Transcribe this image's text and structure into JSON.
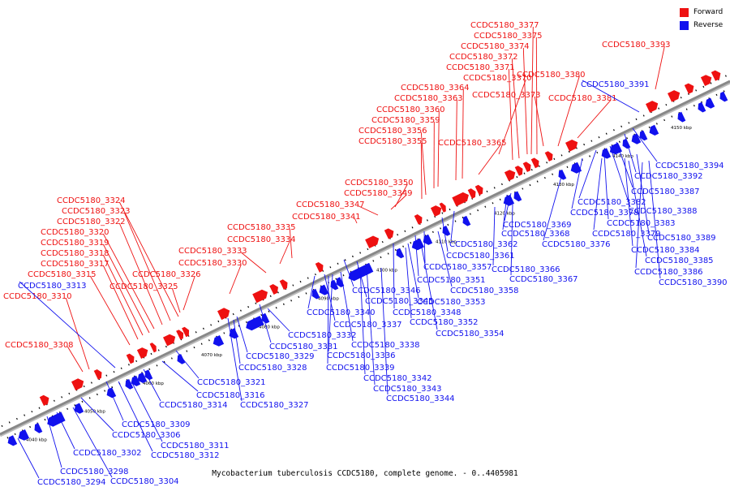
{
  "caption": "Mycobacterium tuberculosis CCDC5180, complete genome. - 0..4405981",
  "legend": [
    {
      "label": "Forward",
      "color": "#ee1111"
    },
    {
      "label": "Reverse",
      "color": "#1111ee"
    }
  ],
  "colors": {
    "forward": "#ee1111",
    "reverse": "#1111ee",
    "axis": "#888888",
    "ticks": "#000000"
  },
  "axis_ticks": [
    "4040 kbp",
    "4050 kbp",
    "4060 kbp",
    "4070 kbp",
    "4080 kbp",
    "4090 kbp",
    "4100 kbp",
    "4110 kbp",
    "4120 kbp",
    "4130 kbp",
    "4140 kbp",
    "4150 kbp"
  ],
  "forward_labels": [
    "CCDC5180_3377",
    "CCDC5180_3375",
    "CCDC5180_3374",
    "CCDC5180_3372",
    "CCDC5180_3371",
    "CCDC5180_3370",
    "CCDC5180_3364",
    "CCDC5180_3363",
    "CCDC5180_3360",
    "CCDC5180_3359",
    "CCDC5180_3356",
    "CCDC5180_3355",
    "CCDC5180_3365",
    "CCDC5180_3373",
    "CCDC5180_3380",
    "CCDC5180_3381",
    "CCDC5180_3393",
    "CCDC5180_3350",
    "CCDC5180_3349",
    "CCDC5180_3347",
    "CCDC5180_3341",
    "CCDC5180_3335",
    "CCDC5180_3334",
    "CCDC5180_3333",
    "CCDC5180_3330",
    "CCDC5180_3326",
    "CCDC5180_3325",
    "CCDC5180_3324",
    "CCDC5180_3323",
    "CCDC5180_3322",
    "CCDC5180_3320",
    "CCDC5180_3319",
    "CCDC5180_3318",
    "CCDC5180_3317",
    "CCDC5180_3315",
    "CCDC5180_3310",
    "CCDC5180_3308"
  ],
  "reverse_labels": [
    "CCDC5180_3391",
    "CCDC5180_3394",
    "CCDC5180_3392",
    "CCDC5180_3387",
    "CCDC5180_3388",
    "CCDC5180_3382",
    "CCDC5180_3378",
    "CCDC5180_3383",
    "CCDC5180_3379",
    "CCDC5180_3389",
    "CCDC5180_3384",
    "CCDC5180_3385",
    "CCDC5180_3386",
    "CCDC5180_3390",
    "CCDC5180_3369",
    "CCDC5180_3368",
    "CCDC5180_3376",
    "CCDC5180_3362",
    "CCDC5180_3361",
    "CCDC5180_3357",
    "CCDC5180_3366",
    "CCDC5180_3367",
    "CCDC5180_3351",
    "CCDC5180_3358",
    "CCDC5180_3346",
    "CCDC5180_3345",
    "CCDC5180_3353",
    "CCDC5180_3348",
    "CCDC5180_3352",
    "CCDC5180_3354",
    "CCDC5180_3340",
    "CCDC5180_3337",
    "CCDC5180_3338",
    "CCDC5180_3336",
    "CCDC5180_3339",
    "CCDC5180_3342",
    "CCDC5180_3343",
    "CCDC5180_3344",
    "CCDC5180_3332",
    "CCDC5180_3331",
    "CCDC5180_3329",
    "CCDC5180_3328",
    "CCDC5180_3321",
    "CCDC5180_3316",
    "CCDC5180_3327",
    "CCDC5180_3314",
    "CCDC5180_3313",
    "CCDC5180_3309",
    "CCDC5180_3306",
    "CCDC5180_3311",
    "CCDC5180_3312",
    "CCDC5180_3302",
    "CCDC5180_3298",
    "CCDC5180_3294",
    "CCDC5180_3304"
  ]
}
